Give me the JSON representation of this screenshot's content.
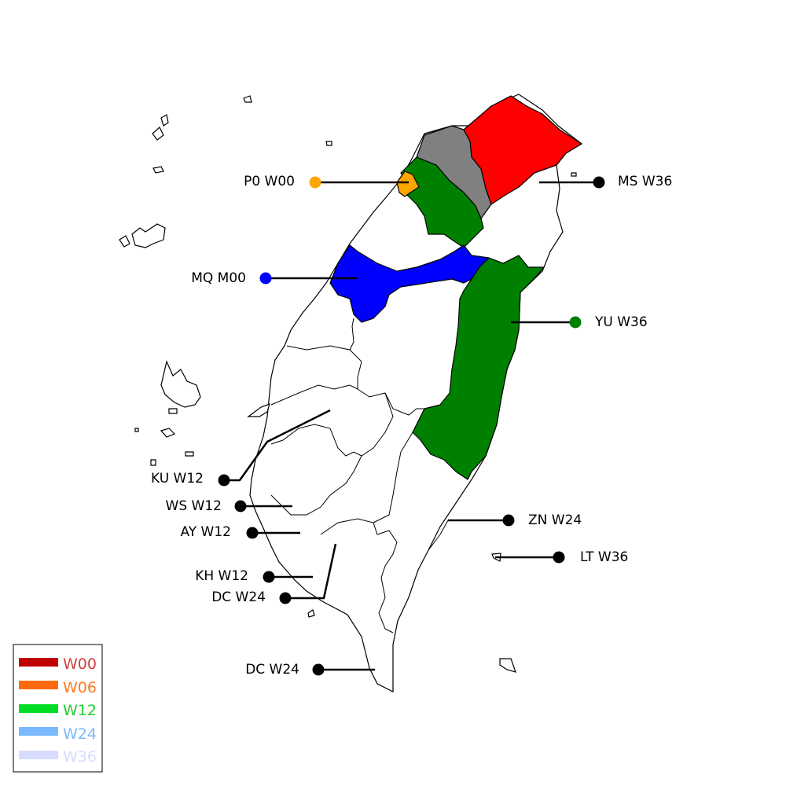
{
  "markers": [
    {
      "id": "p0",
      "station": "P0",
      "level": "W00",
      "dot_color": "#ffa500"
    },
    {
      "id": "ms",
      "station": "MS",
      "level": "W36",
      "dot_color": "#000000"
    },
    {
      "id": "mq",
      "station": "MQ",
      "level": "M00",
      "dot_color": "#0000ff"
    },
    {
      "id": "yu",
      "station": "YU",
      "level": "W36",
      "dot_color": "#008000"
    },
    {
      "id": "ku",
      "station": "KU",
      "level": "W12",
      "dot_color": "#000000"
    },
    {
      "id": "ws",
      "station": "WS",
      "level": "W12",
      "dot_color": "#000000"
    },
    {
      "id": "zn",
      "station": "ZN",
      "level": "W24",
      "dot_color": "#000000"
    },
    {
      "id": "ay",
      "station": "AY",
      "level": "W12",
      "dot_color": "#000000"
    },
    {
      "id": "lt",
      "station": "LT",
      "level": "W36",
      "dot_color": "#000000"
    },
    {
      "id": "kh",
      "station": "KH",
      "level": "W12",
      "dot_color": "#000000"
    },
    {
      "id": "dc1",
      "station": "DC",
      "level": "W24",
      "dot_color": "#000000"
    },
    {
      "id": "dc2",
      "station": "DC",
      "level": "W24",
      "dot_color": "#000000"
    }
  ],
  "labels": {
    "p0": "P0 W00",
    "ms": "MS W36",
    "mq": "MQ M00",
    "yu": "YU W36",
    "ku": "KU W12",
    "ws": "WS W12",
    "zn": "ZN W24",
    "ay": "AY W12",
    "lt": "LT W36",
    "kh": "KH W12",
    "dc1": "DC W24",
    "dc2": "DC W24"
  },
  "regions": {
    "northeast": {
      "color": "#ff0000"
    },
    "north_gray": {
      "color": "#808080"
    },
    "taoyuan": {
      "color": "#008000"
    },
    "north_small": {
      "color": "#ffa500"
    },
    "central_west": {
      "color": "#0000ff"
    },
    "east": {
      "color": "#008000"
    }
  },
  "legend": {
    "items": [
      {
        "label": "W00",
        "swatch": "#c00000",
        "text_color": "#d04040"
      },
      {
        "label": "W06",
        "swatch": "#ff6a10",
        "text_color": "#ff7a20"
      },
      {
        "label": "W12",
        "swatch": "#00dd22",
        "text_color": "#22cc33"
      },
      {
        "label": "W24",
        "swatch": "#7ab8ff",
        "text_color": "#7ab8ff"
      },
      {
        "label": "W36",
        "swatch": "#d7dcff",
        "text_color": "#d7dcff"
      }
    ]
  }
}
